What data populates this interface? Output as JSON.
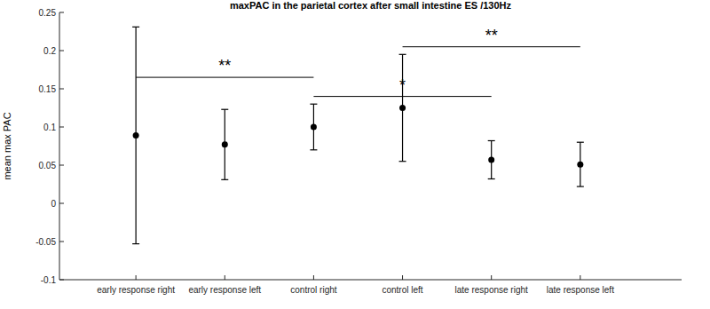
{
  "chart_data": {
    "type": "errorbar",
    "title": "maxPAC in the parietal cortex after small intestine ES /130Hz",
    "y_label": "mean max PAC",
    "categories": [
      "early response right",
      "early response left",
      "control right",
      "control left",
      "late response right",
      "late response left"
    ],
    "values": [
      0.089,
      0.077,
      0.1,
      0.125,
      0.057,
      0.051
    ],
    "errors": [
      0.142,
      0.046,
      0.03,
      0.07,
      0.025,
      0.029
    ],
    "color": "#000000",
    "marker": "circle",
    "ylim": [
      -0.1,
      0.25
    ],
    "yticks": [
      -0.1,
      -0.05,
      0,
      0.05,
      0.1,
      0.15,
      0.2,
      0.25
    ],
    "grid": false,
    "annotations": [
      {
        "text": "**",
        "from": "early response right",
        "to": "control right",
        "y": 0.165
      },
      {
        "text": "*",
        "from": "control right",
        "to": "late response right",
        "y": 0.14
      },
      {
        "text": "**",
        "from": "control left",
        "to": "late response left",
        "y": 0.205
      }
    ]
  }
}
